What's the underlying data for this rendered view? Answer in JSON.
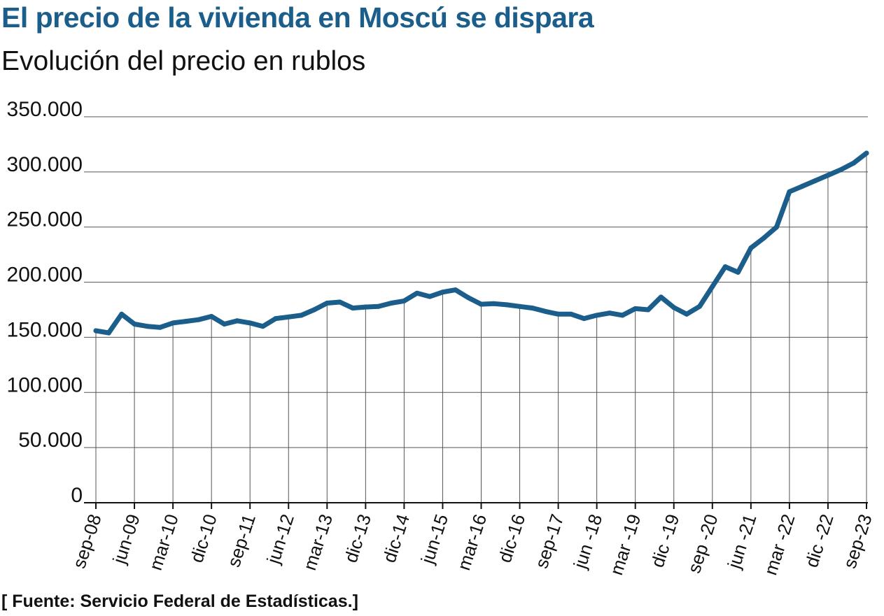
{
  "header": {
    "title": "El precio de la vivienda en Moscú se dispara",
    "subtitle": "Evolución del precio en rublos"
  },
  "footer": {
    "source": "[ Fuente: Servicio Federal de Estadísticas.]"
  },
  "colors": {
    "title": "#1b5e8c",
    "line": "#1b5e8c",
    "grid": "#555555"
  },
  "chart_data": {
    "type": "line",
    "title": "El precio de la vivienda en Moscú se dispara",
    "subtitle": "Evolución del precio en rublos",
    "xlabel": "",
    "ylabel": "",
    "ylim": [
      0,
      350000
    ],
    "yticks": [
      0,
      50000,
      100000,
      150000,
      200000,
      250000,
      300000,
      350000
    ],
    "ytick_labels": [
      "0",
      "50.000",
      "100.000",
      "150.000",
      "200.000",
      "250.000",
      "300.000",
      "350.000"
    ],
    "x_tick_labels": [
      "sep-08",
      "jun-09",
      "mar-10",
      "dic-10",
      "sep-11",
      "jun-12",
      "mar-13",
      "dic-13",
      "dic-14",
      "jun-15",
      "mar-16",
      "dic-16",
      "sep-17",
      "jun -18",
      "mar -19",
      "dic -19",
      "sep -20",
      "jun -21",
      "mar -22",
      "dic -22",
      "sep-23"
    ],
    "grid": true,
    "legend": "none",
    "series": [
      {
        "x": [
          0,
          1,
          2,
          3,
          4,
          5,
          6,
          7,
          8,
          9,
          10,
          11,
          12,
          13,
          14,
          15,
          16,
          17,
          18,
          19,
          20,
          21,
          22,
          23,
          24,
          25,
          26,
          27,
          28,
          29,
          30,
          31,
          32,
          33,
          34,
          35,
          36,
          37,
          38,
          39,
          40,
          41,
          42,
          43,
          44,
          45,
          46,
          47,
          48,
          49,
          50,
          51,
          52,
          53,
          54,
          55,
          56,
          57,
          58,
          59,
          60
        ],
        "values": [
          156000,
          154000,
          171000,
          162000,
          160000,
          159000,
          163000,
          164500,
          166000,
          169000,
          162000,
          165000,
          163000,
          160000,
          167000,
          168500,
          170000,
          175000,
          181000,
          182000,
          176500,
          177500,
          178000,
          181000,
          183000,
          190000,
          187000,
          191000,
          193000,
          186000,
          180000,
          180500,
          179500,
          178000,
          176500,
          173500,
          171000,
          171000,
          167000,
          170000,
          172000,
          170000,
          176000,
          175000,
          186500,
          177000,
          171000,
          178000,
          196000,
          214000,
          209000,
          231000,
          240000,
          250000,
          282000,
          287000,
          292000,
          297000,
          302000,
          308000,
          317000
        ]
      }
    ]
  }
}
